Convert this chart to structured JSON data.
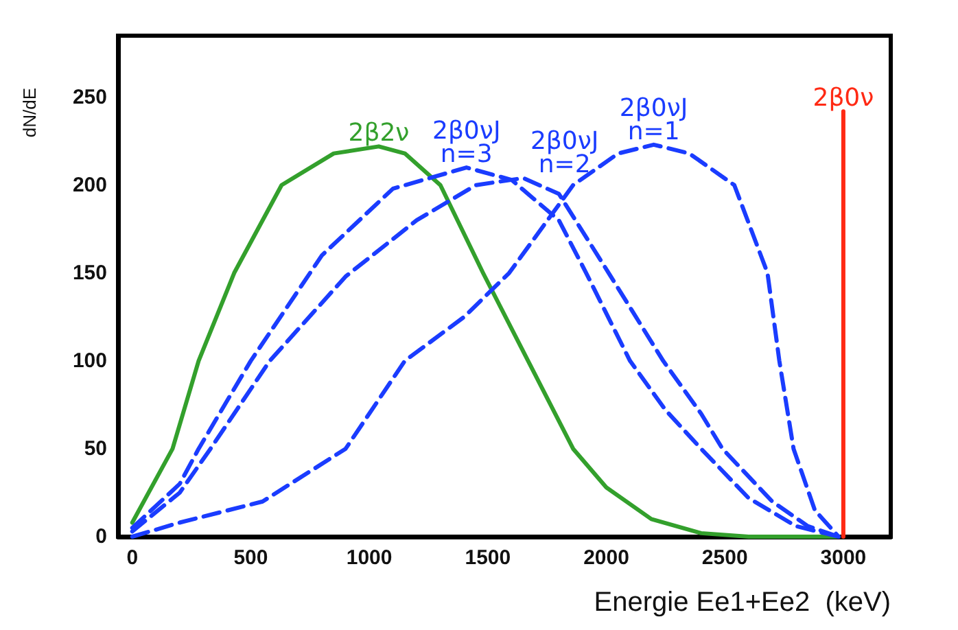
{
  "chart_data": {
    "type": "line",
    "xlabel": "Energie Ee1+Ee2  (keV)",
    "ylabel": "dN/dE",
    "xlim": [
      -60,
      3200
    ],
    "ylim": [
      0,
      285
    ],
    "xticks": [
      0,
      500,
      1000,
      1500,
      2000,
      2500,
      3000
    ],
    "yticks": [
      0,
      50,
      100,
      150,
      200,
      250
    ],
    "grid": false,
    "legend": false,
    "marker": "none",
    "series": [
      {
        "name": "2β2ν",
        "color": "#33a02c",
        "line_style": "solid",
        "x": [
          0,
          170,
          280,
          430,
          630,
          850,
          1040,
          1150,
          1300,
          1480,
          1670,
          1860,
          2000,
          2190,
          2400,
          2600,
          2980
        ],
        "values": [
          8,
          50,
          100,
          150,
          200,
          218,
          222,
          218,
          200,
          150,
          100,
          50,
          28,
          10,
          2,
          0,
          0
        ]
      },
      {
        "name": "2β0νJ\nn=3",
        "color": "#1a3cff",
        "line_style": "dashed",
        "x": [
          0,
          200,
          280,
          500,
          800,
          1100,
          1410,
          1600,
          1800,
          1915,
          2100,
          2250,
          2400,
          2600,
          2800,
          2980
        ],
        "values": [
          5,
          30,
          50,
          100,
          160,
          198,
          210,
          203,
          180,
          150,
          100,
          72,
          50,
          22,
          6,
          0
        ]
      },
      {
        "name": "2β0νJ\nn=2",
        "color": "#1a3cff",
        "line_style": "dashed",
        "x": [
          0,
          200,
          330,
          580,
          900,
          1200,
          1450,
          1650,
          1800,
          2010,
          2240,
          2400,
          2490,
          2700,
          2850,
          2980
        ],
        "values": [
          3,
          25,
          50,
          100,
          148,
          180,
          200,
          204,
          195,
          150,
          100,
          70,
          50,
          20,
          6,
          0
        ]
      },
      {
        "name": "2β0νJ\nn=1",
        "color": "#1a3cff",
        "line_style": "dashed",
        "x": [
          0,
          200,
          550,
          900,
          1150,
          1400,
          1590,
          1860,
          2050,
          2200,
          2350,
          2540,
          2680,
          2730,
          2790,
          2880,
          2980
        ],
        "values": [
          0,
          8,
          20,
          50,
          100,
          125,
          150,
          200,
          218,
          223,
          218,
          200,
          150,
          100,
          50,
          15,
          0
        ]
      },
      {
        "name": "2β0ν",
        "color": "#ff2a14",
        "line_style": "solid",
        "x": [
          3000,
          3000
        ],
        "values": [
          0,
          242
        ]
      }
    ]
  }
}
